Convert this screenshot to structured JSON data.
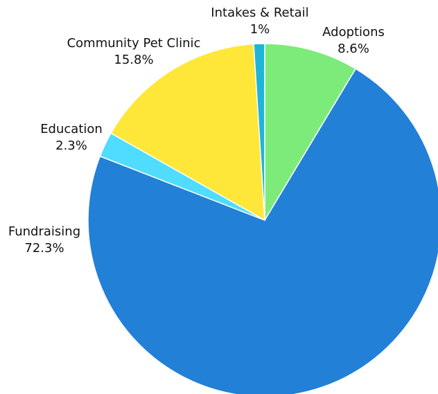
{
  "chart_data": {
    "type": "pie",
    "slices": [
      {
        "label": "Adoptions",
        "value": 8.6,
        "value_label": "8.6%",
        "color": "#7deb7a"
      },
      {
        "label": "Fundraising",
        "value": 72.3,
        "value_label": "72.3%",
        "color": "#2280d6"
      },
      {
        "label": "Education",
        "value": 2.3,
        "value_label": "2.3%",
        "color": "#4fdcff"
      },
      {
        "label": "Community Pet Clinic",
        "value": 15.8,
        "value_label": "15.8%",
        "color": "#ffe739"
      },
      {
        "label": "Intakes & Retail",
        "value": 1,
        "value_label": "1%",
        "color": "#1fb5d8"
      }
    ],
    "start_direction": "top",
    "direction": "clockwise",
    "legend": "none"
  }
}
